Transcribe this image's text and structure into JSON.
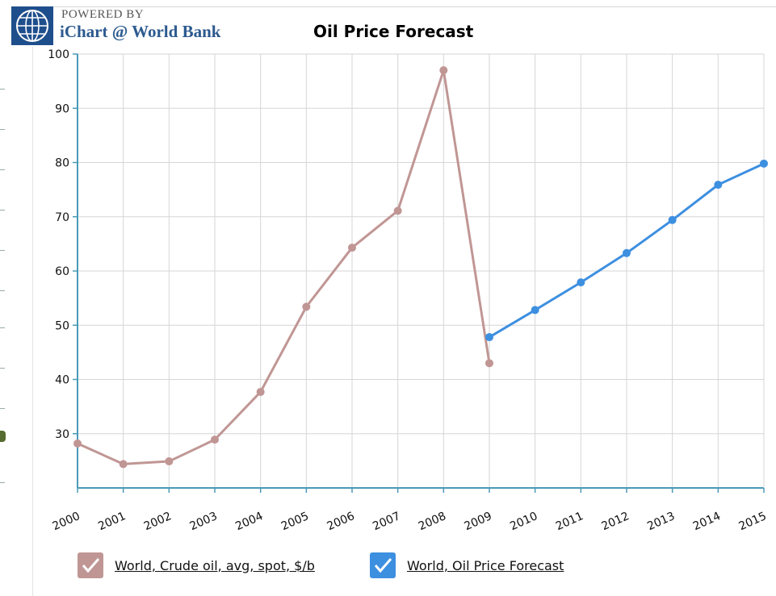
{
  "branding": {
    "powered_by": "POWERED BY",
    "brand_name": "iChart @ World Bank"
  },
  "chart_data": {
    "type": "line",
    "title": "Oil Price Forecast",
    "xlabel": "",
    "ylabel": "",
    "x": [
      "2000",
      "2001",
      "2002",
      "2003",
      "2004",
      "2005",
      "2006",
      "2007",
      "2008",
      "2009",
      "2010",
      "2011",
      "2012",
      "2013",
      "2014",
      "2015"
    ],
    "ylim": [
      20,
      100
    ],
    "yticks": [
      30,
      40,
      50,
      60,
      70,
      80,
      90,
      100
    ],
    "grid": true,
    "legend_position": "bottom-left",
    "series": [
      {
        "name": "World, Crude oil, avg, spot, $/b",
        "color": "#c09694",
        "x": [
          "2000",
          "2001",
          "2002",
          "2003",
          "2004",
          "2005",
          "2006",
          "2007",
          "2008",
          "2009"
        ],
        "values": [
          28.2,
          24.4,
          24.9,
          28.9,
          37.7,
          53.4,
          64.3,
          71.1,
          97.0,
          43.0
        ]
      },
      {
        "name": "World, Oil Price Forecast",
        "color": "#3d8fe0",
        "x": [
          "2009",
          "2010",
          "2011",
          "2012",
          "2013",
          "2014",
          "2015"
        ],
        "values": [
          47.8,
          52.8,
          57.9,
          63.3,
          69.4,
          75.9,
          79.8
        ]
      }
    ]
  }
}
